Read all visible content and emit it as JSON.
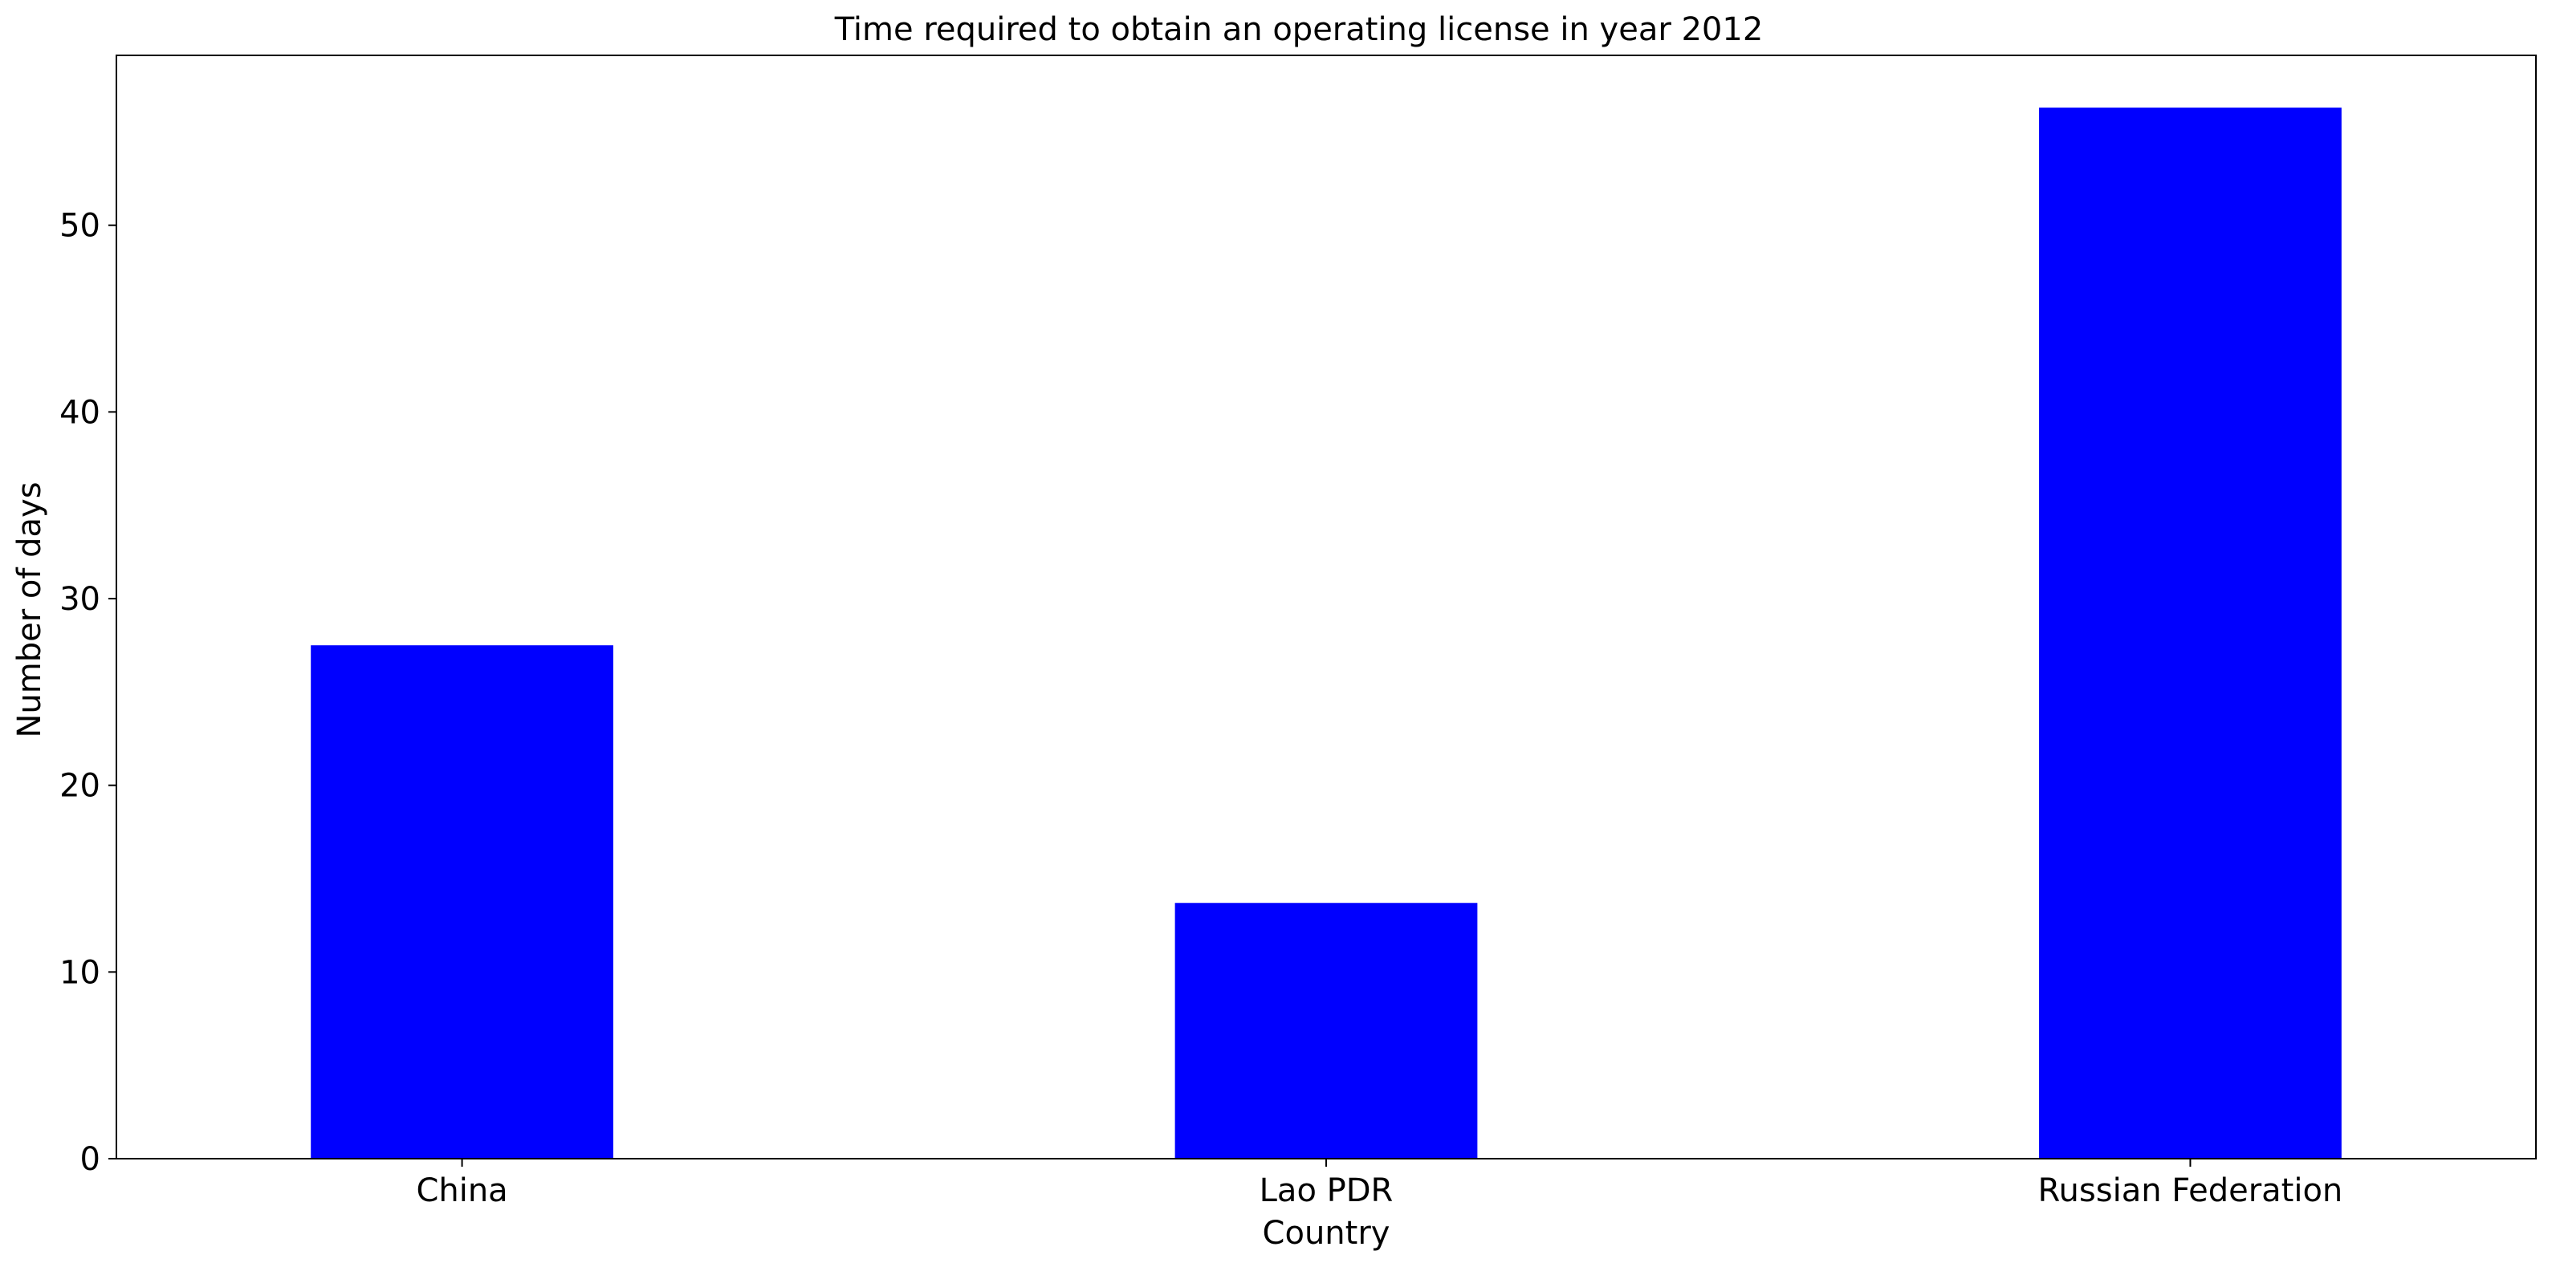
{
  "chart_data": {
    "type": "bar",
    "title": "Time required to obtain an operating license in year 2012",
    "xlabel": "Country",
    "ylabel": "Number of days",
    "categories": [
      "China",
      "Lao PDR",
      "Russian Federation"
    ],
    "values": [
      27.5,
      13.7,
      56.3
    ],
    "ylim": [
      0,
      59.1
    ],
    "yticks": [
      0,
      10,
      20,
      30,
      40,
      50
    ],
    "grid": false,
    "bar_color": "#0000ff"
  }
}
